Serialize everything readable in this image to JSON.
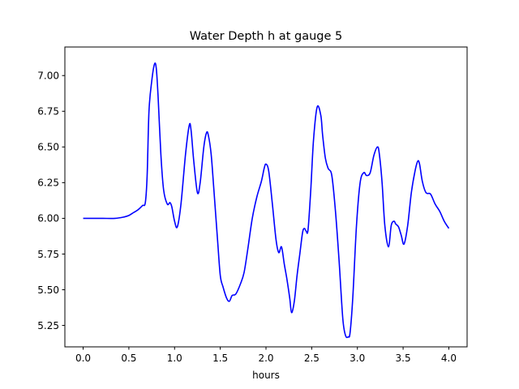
{
  "chart_data": {
    "type": "line",
    "title": "Water Depth h at gauge 5",
    "xlabel": "hours",
    "ylabel": "",
    "xlim": [
      -0.2,
      4.2
    ],
    "ylim": [
      5.1,
      7.2
    ],
    "xticks": [
      0.0,
      0.5,
      1.0,
      1.5,
      2.0,
      2.5,
      3.0,
      3.5,
      4.0
    ],
    "xtick_labels": [
      "0.0",
      "0.5",
      "1.0",
      "1.5",
      "2.0",
      "2.5",
      "3.0",
      "3.5",
      "4.0"
    ],
    "yticks": [
      5.25,
      5.5,
      5.75,
      6.0,
      6.25,
      6.5,
      6.75,
      7.0
    ],
    "ytick_labels": [
      "5.25",
      "5.50",
      "5.75",
      "6.00",
      "6.25",
      "6.50",
      "6.75",
      "7.00"
    ],
    "grid": false,
    "series": [
      {
        "name": "",
        "color": "#0000ff",
        "x": [
          0.0,
          0.2,
          0.35,
          0.45,
          0.5,
          0.55,
          0.6,
          0.65,
          0.68,
          0.7,
          0.72,
          0.75,
          0.78,
          0.8,
          0.82,
          0.85,
          0.88,
          0.92,
          0.95,
          0.97,
          1.0,
          1.03,
          1.07,
          1.12,
          1.16,
          1.18,
          1.21,
          1.25,
          1.28,
          1.32,
          1.35,
          1.37,
          1.4,
          1.43,
          1.47,
          1.5,
          1.53,
          1.57,
          1.6,
          1.63,
          1.67,
          1.72,
          1.76,
          1.8,
          1.85,
          1.9,
          1.95,
          1.98,
          2.0,
          2.03,
          2.07,
          2.11,
          2.14,
          2.17,
          2.2,
          2.23,
          2.26,
          2.28,
          2.31,
          2.34,
          2.37,
          2.4,
          2.42,
          2.44,
          2.46,
          2.49,
          2.52,
          2.56,
          2.6,
          2.62,
          2.65,
          2.68,
          2.72,
          2.76,
          2.8,
          2.84,
          2.87,
          2.9,
          2.92,
          2.95,
          2.99,
          3.03,
          3.07,
          3.1,
          3.14,
          3.18,
          3.22,
          3.24,
          3.27,
          3.3,
          3.34,
          3.37,
          3.4,
          3.42,
          3.45,
          3.48,
          3.51,
          3.55,
          3.59,
          3.63,
          3.66,
          3.68,
          3.71,
          3.75,
          3.8,
          3.85,
          3.9,
          3.95,
          4.0
        ],
        "y": [
          6.0,
          6.0,
          6.0,
          6.01,
          6.02,
          6.04,
          6.06,
          6.09,
          6.11,
          6.3,
          6.75,
          6.96,
          7.08,
          7.05,
          6.85,
          6.45,
          6.2,
          6.1,
          6.11,
          6.08,
          5.98,
          5.94,
          6.1,
          6.45,
          6.65,
          6.62,
          6.4,
          6.18,
          6.25,
          6.5,
          6.6,
          6.58,
          6.45,
          6.2,
          5.85,
          5.6,
          5.52,
          5.44,
          5.42,
          5.46,
          5.47,
          5.54,
          5.62,
          5.78,
          6.0,
          6.15,
          6.26,
          6.35,
          6.38,
          6.33,
          6.1,
          5.85,
          5.76,
          5.8,
          5.68,
          5.57,
          5.44,
          5.34,
          5.42,
          5.6,
          5.75,
          5.9,
          5.93,
          5.91,
          5.92,
          6.2,
          6.55,
          6.78,
          6.72,
          6.58,
          6.42,
          6.35,
          6.3,
          6.05,
          5.7,
          5.3,
          5.18,
          5.17,
          5.2,
          5.45,
          5.95,
          6.25,
          6.32,
          6.3,
          6.32,
          6.44,
          6.5,
          6.45,
          6.25,
          5.95,
          5.8,
          5.95,
          5.98,
          5.96,
          5.94,
          5.88,
          5.82,
          5.95,
          6.18,
          6.33,
          6.4,
          6.38,
          6.26,
          6.18,
          6.17,
          6.1,
          6.05,
          5.98,
          5.93
        ]
      }
    ]
  }
}
